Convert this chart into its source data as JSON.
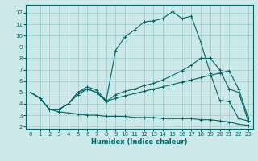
{
  "xlabel": "Humidex (Indice chaleur)",
  "ylabel": "",
  "bg_color": "#cce8e8",
  "grid_color": "#99cccc",
  "line_color": "#006666",
  "xlim": [
    -0.5,
    23.5
  ],
  "ylim": [
    1.8,
    12.7
  ],
  "xticks": [
    0,
    1,
    2,
    3,
    4,
    5,
    6,
    7,
    8,
    9,
    10,
    11,
    12,
    13,
    14,
    15,
    16,
    17,
    18,
    19,
    20,
    21,
    22,
    23
  ],
  "yticks": [
    2,
    3,
    4,
    5,
    6,
    7,
    8,
    9,
    10,
    11,
    12
  ],
  "line1_x": [
    0,
    1,
    2,
    3,
    4,
    5,
    6,
    7,
    8,
    9,
    10,
    11,
    12,
    13,
    14,
    15,
    16,
    17,
    18,
    19,
    20,
    21,
    22,
    23
  ],
  "line1_y": [
    5.0,
    4.5,
    3.5,
    3.5,
    4.0,
    5.0,
    5.5,
    5.2,
    4.3,
    8.7,
    9.9,
    10.5,
    11.2,
    11.3,
    11.5,
    12.1,
    11.5,
    11.7,
    9.4,
    6.7,
    4.3,
    4.2,
    2.7,
    2.5
  ],
  "line2_x": [
    0,
    1,
    2,
    3,
    4,
    5,
    6,
    7,
    8,
    9,
    10,
    11,
    12,
    13,
    14,
    15,
    16,
    17,
    18,
    19,
    20,
    21,
    22,
    23
  ],
  "line2_y": [
    5.0,
    4.5,
    3.5,
    3.3,
    3.2,
    3.1,
    3.0,
    3.0,
    2.9,
    2.9,
    2.9,
    2.8,
    2.8,
    2.8,
    2.7,
    2.7,
    2.7,
    2.7,
    2.6,
    2.6,
    2.5,
    2.4,
    2.2,
    2.1
  ],
  "line3_x": [
    0,
    1,
    2,
    3,
    4,
    5,
    6,
    7,
    8,
    9,
    10,
    11,
    12,
    13,
    14,
    15,
    16,
    17,
    18,
    19,
    20,
    21,
    22,
    23
  ],
  "line3_y": [
    5.0,
    4.5,
    3.5,
    3.5,
    4.0,
    4.8,
    5.3,
    5.0,
    4.2,
    4.5,
    4.7,
    4.9,
    5.1,
    5.3,
    5.5,
    5.7,
    5.9,
    6.1,
    6.3,
    6.5,
    6.7,
    6.9,
    5.3,
    2.8
  ],
  "line4_x": [
    0,
    1,
    2,
    3,
    4,
    5,
    6,
    7,
    8,
    9,
    10,
    11,
    12,
    13,
    14,
    15,
    16,
    17,
    18,
    19,
    20,
    21,
    22,
    23
  ],
  "line4_y": [
    5.0,
    4.5,
    3.5,
    3.5,
    4.0,
    5.0,
    5.3,
    5.0,
    4.2,
    4.8,
    5.1,
    5.3,
    5.6,
    5.8,
    6.1,
    6.5,
    6.9,
    7.4,
    8.0,
    8.0,
    7.0,
    5.3,
    5.0,
    2.5
  ]
}
